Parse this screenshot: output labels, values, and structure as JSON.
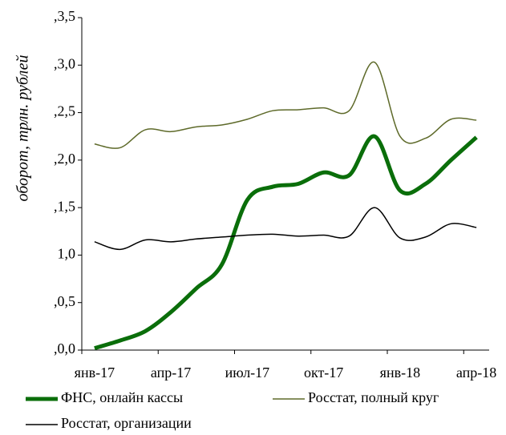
{
  "chart_data": {
    "type": "line",
    "y_label": "оборот, трлн. рублей",
    "categories": [
      "янв-17",
      null,
      null,
      "апр-17",
      null,
      null,
      "июл-17",
      null,
      null,
      "окт-17",
      null,
      null,
      "янв-18",
      null,
      null,
      "апр-18"
    ],
    "series": [
      {
        "name": "ФНС, онлайн кассы",
        "color": "#0a6e0a",
        "width": 5,
        "values": [
          0.02,
          0.1,
          0.2,
          0.4,
          0.65,
          0.9,
          1.58,
          1.72,
          1.75,
          1.87,
          1.84,
          2.25,
          1.68,
          1.75,
          2.0,
          2.24
        ]
      },
      {
        "name": "Росстат, полный круг",
        "color": "#5e6a2a",
        "width": 1.5,
        "values": [
          2.17,
          2.13,
          2.32,
          2.3,
          2.35,
          2.37,
          2.43,
          2.52,
          2.53,
          2.55,
          2.52,
          3.03,
          2.25,
          2.23,
          2.43,
          2.42
        ]
      },
      {
        "name": "Росстат, организации",
        "color": "#000000",
        "width": 1.5,
        "values": [
          1.14,
          1.06,
          1.16,
          1.14,
          1.17,
          1.19,
          1.21,
          1.22,
          1.2,
          1.21,
          1.2,
          1.5,
          1.18,
          1.19,
          1.33,
          1.29
        ]
      }
    ],
    "ylim": [
      0,
      3.5
    ],
    "yticks": [
      {
        "value": 0,
        "label": ",0,0"
      },
      {
        "value": 0.5,
        "label": ",0,5"
      },
      {
        "value": 1,
        "label": "1,0"
      },
      {
        "value": 1.5,
        "label": ",1,5"
      },
      {
        "value": 2,
        "label": ",2,0"
      },
      {
        "value": 2.5,
        "label": ",2,5"
      },
      {
        "value": 3,
        "label": ",3,0"
      },
      {
        "value": 3.5,
        "label": ",3,5"
      }
    ],
    "grid": false
  }
}
